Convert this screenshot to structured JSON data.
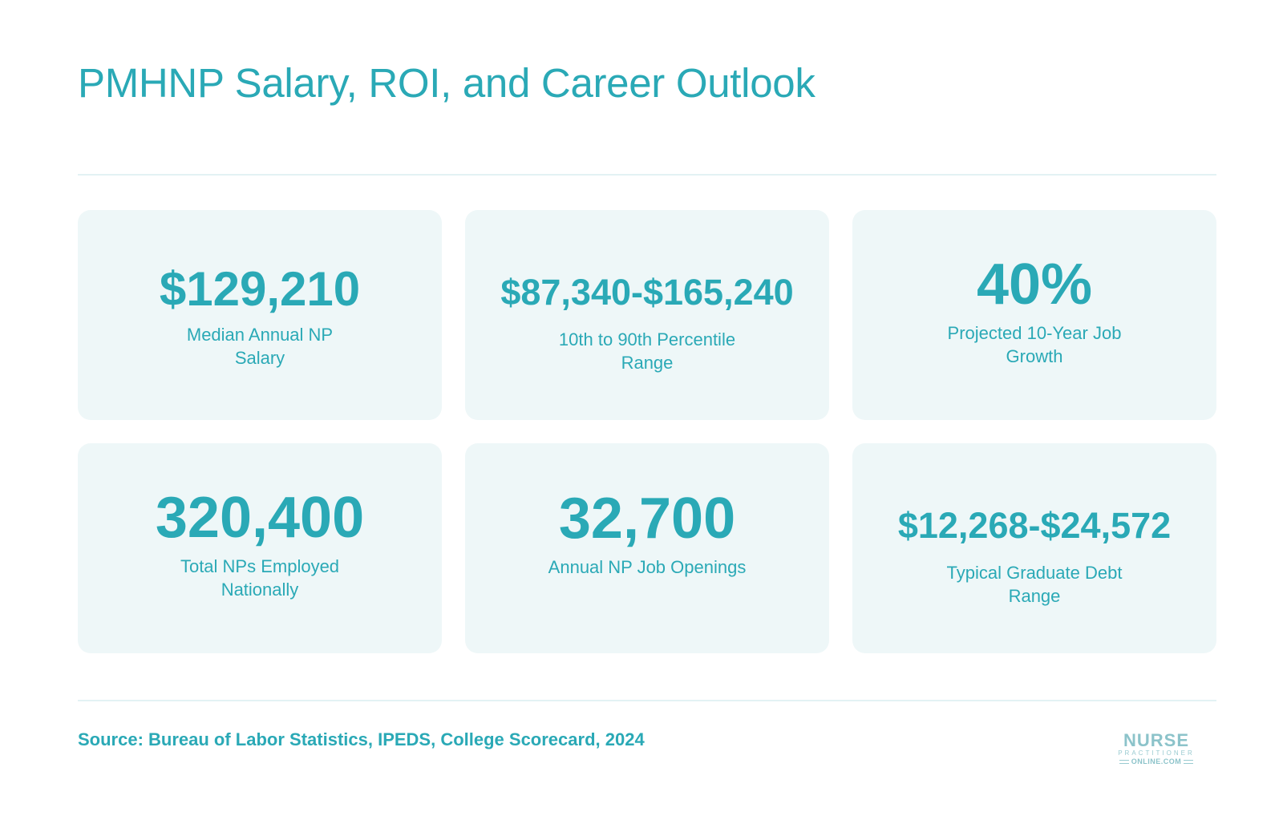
{
  "title": "PMHNP Salary, ROI, and Career Outlook",
  "stats": [
    {
      "value": "$129,210",
      "label": "Median Annual NP Salary"
    },
    {
      "value": "$87,340-$165,240",
      "label": "10th to 90th Percentile Range"
    },
    {
      "value": "40%",
      "label": "Projected 10-Year Job Growth"
    },
    {
      "value": "320,400",
      "label": "Total NPs Employed Nationally"
    },
    {
      "value": "32,700",
      "label": "Annual NP Job Openings"
    },
    {
      "value": "$12,268-$24,572",
      "label": "Typical Graduate Debt Range"
    }
  ],
  "source": "Source: Bureau of Labor Statistics, IPEDS, College Scorecard, 2024",
  "logo": {
    "line1": "NURSE",
    "line2": "PRACTITIONER",
    "line3": "ONLINE.COM"
  },
  "colors": {
    "accent": "#2aa9b6",
    "card_background": "#eef7f8",
    "divider": "#e3f2f4"
  }
}
